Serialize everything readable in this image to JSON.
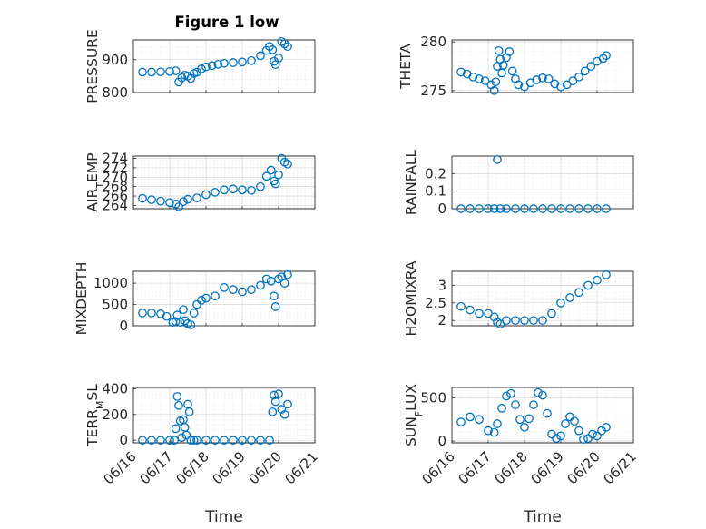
{
  "colors": {
    "series": "#0072bd",
    "axis": "#262626",
    "grid": "#d0d0d0"
  },
  "chart_data": [
    {
      "id": "pressure",
      "type": "scatter",
      "title": "Figure 1 low",
      "ylabel": "PRESSURE",
      "ylim": [
        800,
        960
      ],
      "yticks": [
        800,
        900
      ],
      "grid": true,
      "x": [
        "06/16 06:00",
        "06/16 12:00",
        "06/16 18:00",
        "06/17 00:00",
        "06/17 04:00",
        "06/17 06:00",
        "06/17 08:00",
        "06/17 10:00",
        "06/17 12:00",
        "06/17 14:00",
        "06/17 16:00",
        "06/17 18:00",
        "06/17 21:00",
        "06/18 00:00",
        "06/18 04:00",
        "06/18 08:00",
        "06/18 12:00",
        "06/18 18:00",
        "06/19 00:00",
        "06/19 06:00",
        "06/19 12:00",
        "06/19 16:00",
        "06/19 18:00",
        "06/19 20:00",
        "06/19 21:00",
        "06/19 22:00",
        "06/20 00:00",
        "06/20 02:00",
        "06/20 04:00",
        "06/20 06:00"
      ],
      "y": [
        862,
        862,
        863,
        864,
        866,
        832,
        845,
        853,
        850,
        843,
        858,
        862,
        872,
        878,
        882,
        886,
        889,
        891,
        893,
        897,
        912,
        928,
        940,
        930,
        895,
        885,
        905,
        955,
        948,
        940
      ]
    },
    {
      "id": "theta",
      "type": "scatter",
      "ylabel": "THETA",
      "ylim": [
        274.8,
        280.2
      ],
      "yticks": [
        275,
        280
      ],
      "grid": true,
      "x": [
        "06/16 06:00",
        "06/16 10:00",
        "06/16 14:00",
        "06/16 18:00",
        "06/16 22:00",
        "06/17 02:00",
        "06/17 04:00",
        "06/17 05:00",
        "06/17 06:00",
        "06/17 07:00",
        "06/17 08:00",
        "06/17 09:00",
        "06/17 10:00",
        "06/17 12:00",
        "06/17 14:00",
        "06/17 16:00",
        "06/17 18:00",
        "06/17 20:00",
        "06/18 00:00",
        "06/18 04:00",
        "06/18 08:00",
        "06/18 12:00",
        "06/18 16:00",
        "06/18 20:00",
        "06/19 00:00",
        "06/19 04:00",
        "06/19 08:00",
        "06/19 12:00",
        "06/19 16:00",
        "06/19 20:00",
        "06/20 00:00",
        "06/20 04:00",
        "06/20 06:00"
      ],
      "y": [
        276.9,
        276.7,
        276.4,
        276.2,
        276.0,
        275.6,
        275.0,
        275.9,
        277.5,
        279.1,
        278.2,
        276.8,
        277.6,
        278.4,
        279.0,
        277.0,
        276.2,
        275.6,
        275.4,
        275.8,
        276.1,
        276.3,
        276.2,
        275.7,
        275.4,
        275.6,
        276.0,
        276.4,
        277.0,
        277.5,
        278.0,
        278.3,
        278.6
      ]
    },
    {
      "id": "air_temp",
      "type": "scatter",
      "ylabel": "AIR_TEMP",
      "ylim": [
        263.3,
        274.5
      ],
      "yticks": [
        264,
        266,
        268,
        270,
        272,
        274
      ],
      "grid": true,
      "x": [
        "06/16 06:00",
        "06/16 12:00",
        "06/16 18:00",
        "06/17 00:00",
        "06/17 04:00",
        "06/17 06:00",
        "06/17 09:00",
        "06/17 12:00",
        "06/17 18:00",
        "06/18 00:00",
        "06/18 06:00",
        "06/18 12:00",
        "06/18 18:00",
        "06/19 00:00",
        "06/19 06:00",
        "06/19 12:00",
        "06/19 16:00",
        "06/19 19:00",
        "06/19 21:00",
        "06/19 22:00",
        "06/20 00:00",
        "06/20 02:00",
        "06/20 04:00",
        "06/20 06:00"
      ],
      "y": [
        265.5,
        265.2,
        264.9,
        264.6,
        264.3,
        263.7,
        264.8,
        265.3,
        265.6,
        266.3,
        266.8,
        267.3,
        267.5,
        267.3,
        267.2,
        268.0,
        270.2,
        271.5,
        269.2,
        268.6,
        270.5,
        274.0,
        273.2,
        272.8
      ]
    },
    {
      "id": "rainfall",
      "type": "scatter",
      "ylabel": "RAINFALL",
      "ylim": [
        0,
        0.3
      ],
      "yticks": [
        0,
        0.1,
        0.2
      ],
      "grid": true,
      "x": [
        "06/16 06:00",
        "06/16 12:00",
        "06/16 18:00",
        "06/17 00:00",
        "06/17 04:00",
        "06/17 06:00",
        "06/17 08:00",
        "06/17 12:00",
        "06/17 18:00",
        "06/18 00:00",
        "06/18 06:00",
        "06/18 12:00",
        "06/18 18:00",
        "06/19 00:00",
        "06/19 06:00",
        "06/19 12:00",
        "06/19 18:00",
        "06/20 00:00",
        "06/20 06:00"
      ],
      "y": [
        0,
        0,
        0,
        0,
        0,
        0.28,
        0,
        0,
        0,
        0,
        0,
        0,
        0,
        0,
        0,
        0,
        0,
        0,
        0
      ]
    },
    {
      "id": "mixdepth",
      "type": "scatter",
      "ylabel": "MIXDEPTH",
      "ylim": [
        0,
        1280
      ],
      "yticks": [
        0,
        500,
        1000
      ],
      "grid": true,
      "x": [
        "06/16 06:00",
        "06/16 12:00",
        "06/16 18:00",
        "06/16 22:00",
        "06/17 02:00",
        "06/17 04:00",
        "06/17 05:00",
        "06/17 07:00",
        "06/17 09:00",
        "06/17 10:00",
        "06/17 12:00",
        "06/17 14:00",
        "06/17 16:00",
        "06/17 18:00",
        "06/17 21:00",
        "06/18 00:00",
        "06/18 06:00",
        "06/18 12:00",
        "06/18 18:00",
        "06/19 00:00",
        "06/19 06:00",
        "06/19 12:00",
        "06/19 16:00",
        "06/19 19:00",
        "06/19 21:00",
        "06/19 22:00",
        "06/20 00:00",
        "06/20 02:00",
        "06/20 04:00",
        "06/20 06:00"
      ],
      "y": [
        300,
        300,
        280,
        220,
        80,
        100,
        250,
        80,
        380,
        120,
        50,
        20,
        300,
        500,
        600,
        650,
        700,
        900,
        850,
        800,
        850,
        950,
        1100,
        1050,
        700,
        450,
        1100,
        1150,
        1000,
        1200
      ]
    },
    {
      "id": "h2omixra",
      "type": "scatter",
      "ylabel": "H2OMIXRA",
      "ylim": [
        1.85,
        3.4
      ],
      "yticks": [
        2,
        2.5,
        3
      ],
      "grid": true,
      "x": [
        "06/16 06:00",
        "06/16 12:00",
        "06/16 18:00",
        "06/17 00:00",
        "06/17 04:00",
        "06/17 06:00",
        "06/17 08:00",
        "06/17 12:00",
        "06/17 18:00",
        "06/18 00:00",
        "06/18 06:00",
        "06/18 12:00",
        "06/18 18:00",
        "06/19 00:00",
        "06/19 06:00",
        "06/19 12:00",
        "06/19 18:00",
        "06/20 00:00",
        "06/20 06:00"
      ],
      "y": [
        2.4,
        2.3,
        2.2,
        2.2,
        2.1,
        1.95,
        1.9,
        2.0,
        2.0,
        2.0,
        2.0,
        2.0,
        2.2,
        2.5,
        2.65,
        2.8,
        3.0,
        3.15,
        3.3
      ]
    },
    {
      "id": "terr_msl",
      "type": "scatter",
      "ylabel": "TERR_MSL",
      "ylim": [
        -20,
        410
      ],
      "yticks": [
        0,
        200,
        400
      ],
      "grid": true,
      "x": [
        "06/16 06:00",
        "06/16 12:00",
        "06/16 18:00",
        "06/17 00:00",
        "06/17 03:00",
        "06/17 04:00",
        "06/17 05:00",
        "06/17 06:00",
        "06/17 07:00",
        "06/17 08:00",
        "06/17 09:00",
        "06/17 10:00",
        "06/17 11:00",
        "06/17 12:00",
        "06/17 13:00",
        "06/17 14:00",
        "06/17 16:00",
        "06/17 18:00",
        "06/18 00:00",
        "06/18 06:00",
        "06/18 12:00",
        "06/18 18:00",
        "06/19 00:00",
        "06/19 06:00",
        "06/19 12:00",
        "06/19 18:00",
        "06/19 20:00",
        "06/19 21:00",
        "06/19 22:00",
        "06/20 00:00",
        "06/20 02:00",
        "06/20 04:00",
        "06/20 06:00"
      ],
      "y": [
        0,
        0,
        0,
        0,
        0,
        90,
        340,
        270,
        150,
        20,
        160,
        100,
        40,
        280,
        220,
        0,
        0,
        0,
        0,
        0,
        0,
        0,
        0,
        0,
        0,
        0,
        220,
        350,
        300,
        360,
        240,
        200,
        280
      ]
    },
    {
      "id": "sun_flux",
      "type": "scatter",
      "ylabel": "SUN_FLUX",
      "ylim": [
        -20,
        620
      ],
      "yticks": [
        0,
        500
      ],
      "grid": true,
      "x": [
        "06/16 06:00",
        "06/16 12:00",
        "06/16 18:00",
        "06/17 00:00",
        "06/17 04:00",
        "06/17 06:00",
        "06/17 09:00",
        "06/17 12:00",
        "06/17 15:00",
        "06/17 18:00",
        "06/17 21:00",
        "06/18 00:00",
        "06/18 03:00",
        "06/18 06:00",
        "06/18 09:00",
        "06/18 12:00",
        "06/18 15:00",
        "06/18 18:00",
        "06/18 21:00",
        "06/19 00:00",
        "06/19 03:00",
        "06/19 06:00",
        "06/19 09:00",
        "06/19 12:00",
        "06/19 15:00",
        "06/19 18:00",
        "06/19 21:00",
        "06/20 00:00",
        "06/20 03:00",
        "06/20 06:00"
      ],
      "y": [
        220,
        280,
        250,
        120,
        100,
        200,
        380,
        520,
        550,
        420,
        250,
        160,
        260,
        420,
        560,
        530,
        320,
        80,
        30,
        60,
        200,
        280,
        230,
        120,
        20,
        30,
        80,
        60,
        120,
        160
      ]
    }
  ],
  "shared": {
    "xlabel": "Time",
    "xtick_labels": [
      "06/16",
      "06/17",
      "06/18",
      "06/19",
      "06/20",
      "06/21"
    ],
    "xlim": [
      "06/16 00:00",
      "06/21 00:00"
    ]
  }
}
